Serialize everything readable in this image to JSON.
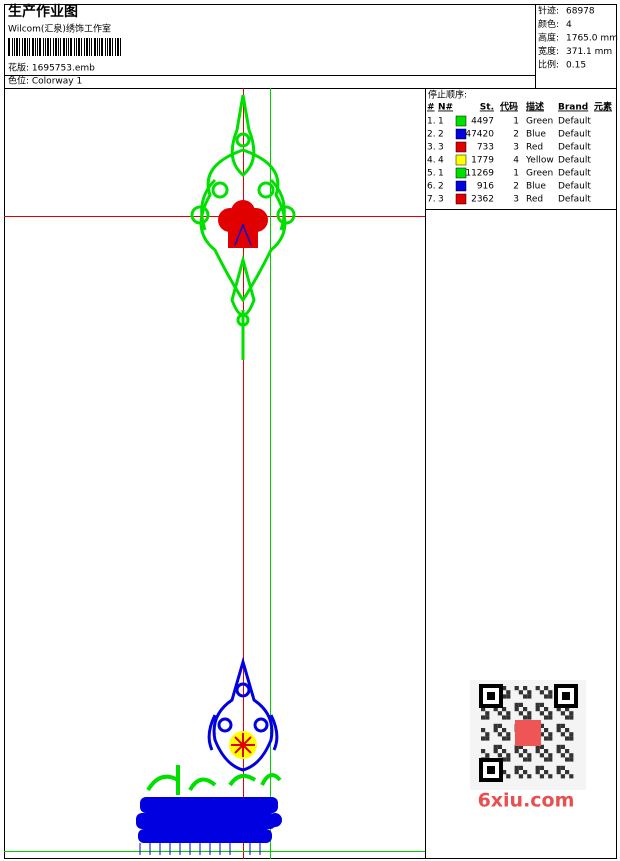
{
  "header": {
    "title": "生产作业图",
    "company": "Wilcom(汇泉)绣饰工作室",
    "file": "花版: 1695753.emb",
    "colorway": "色位: Colorway 1"
  },
  "stats": [
    {
      "label": "针迹:",
      "value": "68978"
    },
    {
      "label": "颜色:",
      "value": "4"
    },
    {
      "label": "高度:",
      "value": "1765.0 mm"
    },
    {
      "label": "宽度:",
      "value": "371.1 mm"
    },
    {
      "label": "比例:",
      "value": "0.15"
    }
  ],
  "stop_sequence": {
    "title": "停止顺序:",
    "columns": [
      "#",
      "N#",
      "St.",
      "代码",
      "描述",
      "Brand",
      "元素"
    ],
    "rows": [
      {
        "num": "1.",
        "n": "1",
        "color": "#00e000",
        "st": 4497,
        "code": 1,
        "desc": "Green",
        "brand": "Default"
      },
      {
        "num": "2.",
        "n": "2",
        "color": "#0000e0",
        "st": 47420,
        "code": 2,
        "desc": "Blue",
        "brand": "Default"
      },
      {
        "num": "3.",
        "n": "3",
        "color": "#e00000",
        "st": 733,
        "code": 3,
        "desc": "Red",
        "brand": "Default"
      },
      {
        "num": "4.",
        "n": "4",
        "color": "#ffff00",
        "st": 1779,
        "code": 4,
        "desc": "Yellow",
        "brand": "Default"
      },
      {
        "num": "5.",
        "n": "1",
        "color": "#00e000",
        "st": 11269,
        "code": 1,
        "desc": "Green",
        "brand": "Default"
      },
      {
        "num": "6.",
        "n": "2",
        "color": "#0000e0",
        "st": 916,
        "code": 2,
        "desc": "Blue",
        "brand": "Default"
      },
      {
        "num": "7.",
        "n": "3",
        "color": "#e00000",
        "st": 2362,
        "code": 3,
        "desc": "Red",
        "brand": "Default"
      }
    ]
  },
  "watermark": "6xiu.com"
}
